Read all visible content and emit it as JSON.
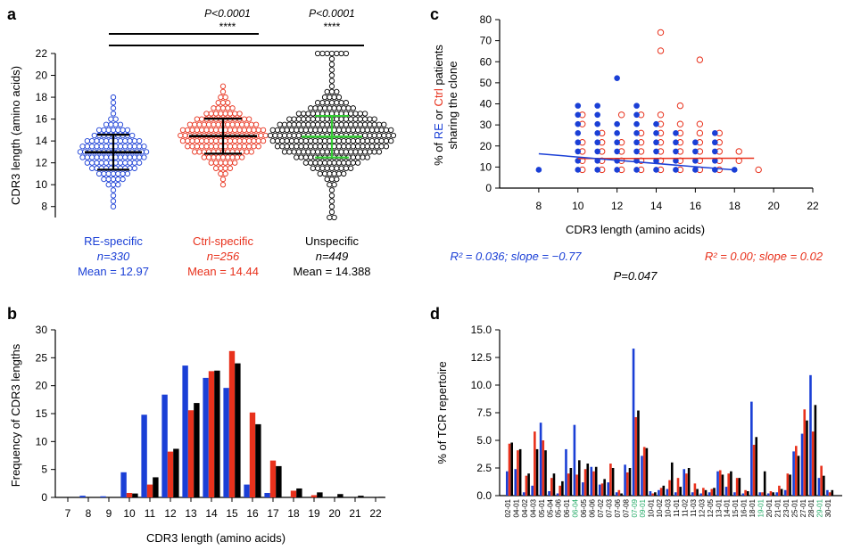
{
  "colors": {
    "re": "#1a3fd6",
    "ctrl": "#e8311c",
    "unspec": "#000000",
    "sd_unspec": "#33cc33",
    "highlight": "#22aa66"
  },
  "chart_data": [
    {
      "panel": "a",
      "type": "scatter",
      "ylabel": "CDR3 length (amino acids)",
      "ylim": [
        7,
        22
      ],
      "yticks": [
        8,
        10,
        12,
        14,
        16,
        18,
        20,
        22
      ],
      "groups": [
        {
          "name": "RE-specific",
          "n": "n=330",
          "mean_label": "Mean = 12.97",
          "mean": 12.97,
          "sd": 1.6,
          "range": [
            8,
            18
          ]
        },
        {
          "name": "Ctrl-specific",
          "n": "n=256",
          "mean_label": "Mean = 14.44",
          "mean": 14.44,
          "sd": 1.6,
          "range": [
            10,
            19
          ]
        },
        {
          "name": "Unspecific",
          "n": "n=449",
          "mean_label": "Mean = 14.388",
          "mean": 14.388,
          "sd": 1.9,
          "range": [
            7,
            22
          ]
        }
      ],
      "comparisons": [
        {
          "pvalue": "P<0.0001",
          "stars": "****"
        },
        {
          "pvalue": "P<0.0001",
          "stars": "****"
        }
      ]
    },
    {
      "panel": "b",
      "type": "bar",
      "xlabel": "CDR3 length (amino acids)",
      "ylabel": "Frequency of CDR3 lengths",
      "ylim": [
        0,
        30
      ],
      "yticks": [
        0,
        5,
        10,
        15,
        20,
        25,
        30
      ],
      "categories": [
        "7",
        "8",
        "9",
        "10",
        "11",
        "12",
        "13",
        "14",
        "15",
        "16",
        "17",
        "18",
        "19",
        "20",
        "21",
        "22"
      ],
      "series": [
        {
          "values": [
            0,
            0.3,
            0.2,
            4.5,
            14.8,
            18.4,
            23.6,
            21.4,
            19.6,
            2.3,
            0.8,
            0,
            0,
            0,
            0,
            0
          ]
        },
        {
          "values": [
            0,
            0,
            0,
            0.8,
            2.3,
            8.2,
            15.6,
            22.6,
            26.2,
            15.2,
            6.6,
            1.2,
            0.4,
            0,
            0,
            0
          ]
        },
        {
          "values": [
            0,
            0,
            0,
            0.7,
            3.6,
            8.7,
            16.9,
            22.7,
            24.0,
            13.1,
            5.6,
            1.6,
            0.9,
            0.6,
            0.3,
            0.1
          ]
        }
      ]
    },
    {
      "panel": "c",
      "type": "scatter",
      "xlabel": "CDR3 length (amino acids)",
      "ylabel_parts": [
        "% of ",
        "RE",
        " or ",
        "Ctrl",
        " patients"
      ],
      "ylabel2": "sharing the clone",
      "xlim": [
        6,
        22
      ],
      "ylim": [
        0,
        80
      ],
      "xticks": [
        8,
        10,
        12,
        14,
        16,
        18,
        20,
        22
      ],
      "yticks": [
        0,
        10,
        20,
        30,
        40,
        50,
        60,
        70,
        80
      ],
      "series": [
        {
          "points": [
            [
              8,
              8.7
            ],
            [
              10,
              8.7
            ],
            [
              10,
              13
            ],
            [
              10,
              17.4
            ],
            [
              10,
              21.7
            ],
            [
              10,
              26.1
            ],
            [
              10,
              30.4
            ],
            [
              10,
              34.8
            ],
            [
              10,
              39.1
            ],
            [
              11,
              8.7
            ],
            [
              11,
              13
            ],
            [
              11,
              17.4
            ],
            [
              11,
              21.7
            ],
            [
              11,
              26.1
            ],
            [
              11,
              30.4
            ],
            [
              11,
              34.8
            ],
            [
              11,
              39.1
            ],
            [
              12,
              8.7
            ],
            [
              12,
              13
            ],
            [
              12,
              17.4
            ],
            [
              12,
              21.7
            ],
            [
              12,
              26.1
            ],
            [
              12,
              30.4
            ],
            [
              12,
              52.2
            ],
            [
              13,
              8.7
            ],
            [
              13,
              13
            ],
            [
              13,
              17.4
            ],
            [
              13,
              21.7
            ],
            [
              13,
              26.1
            ],
            [
              13,
              30.4
            ],
            [
              13,
              34.8
            ],
            [
              13,
              39.1
            ],
            [
              14,
              8.7
            ],
            [
              14,
              13
            ],
            [
              14,
              17.4
            ],
            [
              14,
              21.7
            ],
            [
              14,
              26.1
            ],
            [
              14,
              30.4
            ],
            [
              15,
              8.7
            ],
            [
              15,
              13
            ],
            [
              15,
              17.4
            ],
            [
              15,
              21.7
            ],
            [
              15,
              26.1
            ],
            [
              16,
              8.7
            ],
            [
              16,
              13
            ],
            [
              16,
              17.4
            ],
            [
              16,
              21.7
            ],
            [
              17,
              8.7
            ],
            [
              17,
              13
            ],
            [
              17,
              17.4
            ],
            [
              17,
              21.7
            ],
            [
              17,
              26.1
            ],
            [
              18,
              8.7
            ]
          ],
          "fit": [
            [
              8,
              16.3
            ],
            [
              18,
              8.6
            ]
          ],
          "stat": "R² = 0.036; slope = −0.77"
        },
        {
          "points": [
            [
              10,
              8.7
            ],
            [
              10,
              13
            ],
            [
              10,
              17.4
            ],
            [
              10,
              21.7
            ],
            [
              10,
              30.4
            ],
            [
              10,
              34.8
            ],
            [
              11,
              8.7
            ],
            [
              11,
              13
            ],
            [
              11,
              17.4
            ],
            [
              11,
              21.7
            ],
            [
              11,
              26.1
            ],
            [
              12,
              8.7
            ],
            [
              12,
              13
            ],
            [
              12,
              17.4
            ],
            [
              12,
              21.7
            ],
            [
              12,
              34.8
            ],
            [
              13,
              8.7
            ],
            [
              13,
              13
            ],
            [
              13,
              17.4
            ],
            [
              13,
              21.7
            ],
            [
              13,
              26.1
            ],
            [
              13,
              34.8
            ],
            [
              14,
              8.7
            ],
            [
              14,
              13
            ],
            [
              14,
              17.4
            ],
            [
              14,
              21.7
            ],
            [
              14,
              26.1
            ],
            [
              14,
              30.4
            ],
            [
              14,
              34.8
            ],
            [
              14,
              65.2
            ],
            [
              14,
              73.9
            ],
            [
              15,
              8.7
            ],
            [
              15,
              13
            ],
            [
              15,
              17.4
            ],
            [
              15,
              21.7
            ],
            [
              15,
              26.1
            ],
            [
              15,
              30.4
            ],
            [
              15,
              39.1
            ],
            [
              16,
              8.7
            ],
            [
              16,
              13
            ],
            [
              16,
              17.4
            ],
            [
              16,
              21.7
            ],
            [
              16,
              26.1
            ],
            [
              16,
              30.4
            ],
            [
              16,
              60.9
            ],
            [
              17,
              8.7
            ],
            [
              17,
              13
            ],
            [
              17,
              17.4
            ],
            [
              17,
              21.7
            ],
            [
              17,
              26.1
            ],
            [
              18,
              13
            ],
            [
              18,
              17.4
            ],
            [
              19,
              8.7
            ]
          ],
          "fit": [
            [
              10,
              14.0
            ],
            [
              19,
              14.2
            ]
          ],
          "stat": "R² = 0.00; slope = 0.02"
        }
      ],
      "pvalue": "P=0.047"
    },
    {
      "panel": "d",
      "type": "bar",
      "ylabel": "% of TCR repertoire",
      "ylim": [
        0,
        15
      ],
      "yticks": [
        "0.0",
        "2.5",
        "5.0",
        "7.5",
        "10.0",
        "12.5",
        "15.0"
      ],
      "categories": [
        "02-01",
        "04-01",
        "04-02",
        "04-03",
        "05-01",
        "05-04",
        "05-06",
        "06-01",
        "06-04",
        "06-05",
        "06-06",
        "07-02",
        "07-03",
        "07-06",
        "07-08",
        "07-09",
        "09-01",
        "10-01",
        "10-02",
        "10-03",
        "11-01",
        "11-02",
        "11-03",
        "12-03",
        "12-05",
        "13-01",
        "14-01",
        "15-01",
        "16-01",
        "18-01",
        "19-01",
        "20-01",
        "21-01",
        "23-01",
        "25-01",
        "27-01",
        "28-01",
        "29-01",
        "30-01"
      ],
      "highlighted": [
        "06-04",
        "07-09",
        "09-01",
        "19-01",
        "29-01"
      ],
      "series": [
        {
          "values": [
            2.2,
            2.4,
            0.3,
            0.9,
            6.6,
            0.4,
            0.2,
            4.2,
            6.4,
            1.2,
            2.6,
            1.0,
            1.2,
            0.3,
            2.8,
            13.3,
            3.6,
            0.4,
            0.5,
            0.6,
            0.3,
            2.4,
            0.3,
            0.2,
            0.3,
            2.2,
            0.8,
            0.3,
            0.2,
            8.5,
            0.3,
            0.2,
            0.3,
            0.5,
            4.0,
            5.6,
            10.9,
            1.6,
            0.5
          ]
        },
        {
          "values": [
            4.7,
            4.1,
            1.8,
            5.8,
            5.0,
            1.6,
            0.9,
            2.0,
            1.9,
            2.4,
            2.2,
            1.1,
            2.9,
            0.5,
            2.1,
            7.1,
            4.4,
            0.2,
            0.7,
            1.4,
            1.6,
            2.0,
            1.1,
            0.7,
            0.6,
            2.3,
            2.0,
            1.6,
            0.5,
            4.6,
            0.3,
            0.4,
            0.9,
            2.0,
            4.5,
            7.8,
            5.8,
            2.7,
            0.3
          ]
        },
        {
          "values": [
            4.8,
            4.2,
            2.0,
            4.2,
            4.1,
            2.0,
            1.3,
            2.5,
            3.2,
            2.9,
            2.6,
            1.5,
            2.5,
            0.2,
            2.5,
            7.7,
            4.3,
            0.3,
            0.9,
            3.0,
            0.8,
            2.5,
            0.6,
            0.5,
            0.7,
            1.9,
            2.2,
            1.6,
            0.4,
            5.3,
            2.2,
            0.3,
            0.6,
            1.9,
            3.6,
            6.8,
            8.2,
            1.8,
            0.5
          ]
        }
      ]
    }
  ]
}
